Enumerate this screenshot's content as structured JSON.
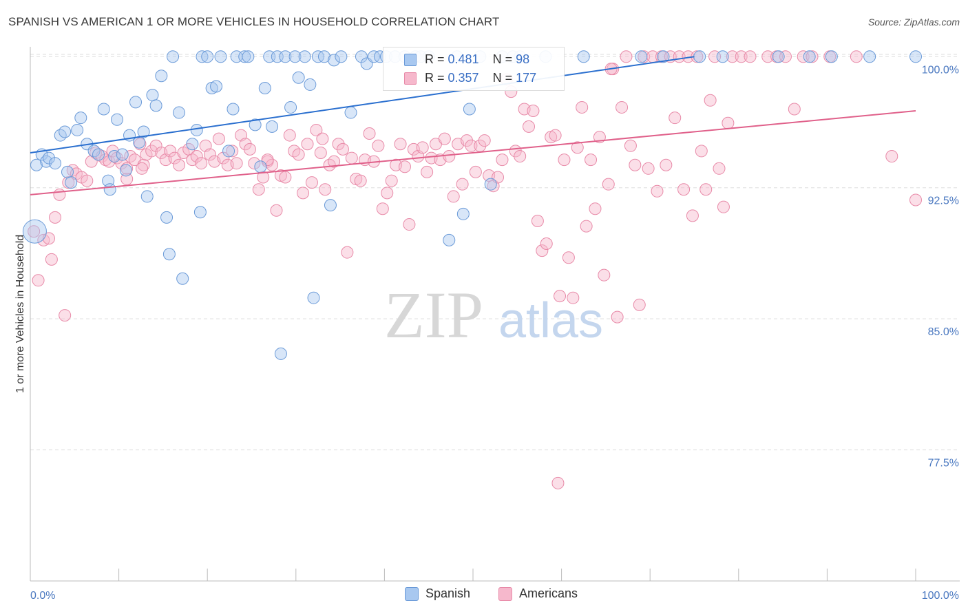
{
  "title": "SPANISH VS AMERICAN 1 OR MORE VEHICLES IN HOUSEHOLD CORRELATION CHART",
  "source": "Source: ZipAtlas.com",
  "watermark": {
    "zip": "ZIP",
    "atlas": "atlas"
  },
  "colors": {
    "spanish_fill": "#a8c8f0",
    "spanish_stroke": "#6a9ad8",
    "spanish_line": "#2a6fcf",
    "american_fill": "#f6b8cc",
    "american_stroke": "#e88aa8",
    "american_line": "#e0608a",
    "axis_text": "#4a78c0"
  },
  "legend": {
    "rows": [
      {
        "r_label": "R = ",
        "r_value": "0.481",
        "n_label": "N = ",
        "n_value": "98"
      },
      {
        "r_label": "R = ",
        "r_value": "0.357",
        "n_label": "N = ",
        "n_value": "177"
      }
    ]
  },
  "bottom_legend": [
    "Spanish",
    "Americans"
  ],
  "chart_data": {
    "type": "scatter",
    "title": "SPANISH VS AMERICAN 1 OR MORE VEHICLES IN HOUSEHOLD CORRELATION CHART",
    "xlabel": "",
    "ylabel": "1 or more Vehicles in Household",
    "xlim": [
      0,
      100
    ],
    "ylim": [
      70,
      100.8
    ],
    "x_tick_labels": [
      "0.0%",
      "100.0%"
    ],
    "y_ticks": [
      77.5,
      85.0,
      92.5,
      100.0
    ],
    "y_tick_labels": [
      "77.5%",
      "85.0%",
      "92.5%",
      "100.0%"
    ],
    "grid": true,
    "legend_position": "top-center",
    "series": [
      {
        "name": "Spanish",
        "R": 0.481,
        "N": 98,
        "trend": {
          "x": [
            0,
            75
          ],
          "y": [
            94.5,
            100.0
          ]
        },
        "points": [
          [
            0.5,
            90.0
          ],
          [
            0.7,
            93.8
          ],
          [
            1.3,
            94.4
          ],
          [
            1.8,
            94.0
          ],
          [
            2.1,
            94.2
          ],
          [
            2.8,
            93.9
          ],
          [
            3.4,
            95.5
          ],
          [
            3.9,
            95.7
          ],
          [
            4.2,
            93.4
          ],
          [
            4.6,
            92.8
          ],
          [
            5.3,
            95.8
          ],
          [
            5.7,
            96.5
          ],
          [
            6.4,
            95.0
          ],
          [
            7.2,
            94.6
          ],
          [
            7.7,
            94.4
          ],
          [
            8.3,
            97.0
          ],
          [
            8.8,
            92.9
          ],
          [
            9.0,
            92.4
          ],
          [
            9.5,
            94.3
          ],
          [
            9.8,
            96.4
          ],
          [
            10.4,
            94.4
          ],
          [
            10.8,
            93.5
          ],
          [
            11.2,
            95.5
          ],
          [
            11.9,
            97.4
          ],
          [
            12.3,
            95.1
          ],
          [
            12.8,
            95.7
          ],
          [
            13.2,
            92.0
          ],
          [
            13.8,
            97.8
          ],
          [
            14.2,
            97.2
          ],
          [
            14.8,
            98.9
          ],
          [
            15.4,
            90.8
          ],
          [
            15.7,
            88.7
          ],
          [
            16.1,
            100.0
          ],
          [
            16.8,
            96.8
          ],
          [
            17.2,
            87.3
          ],
          [
            18.3,
            95.0
          ],
          [
            18.8,
            95.8
          ],
          [
            19.2,
            91.1
          ],
          [
            19.4,
            100.0
          ],
          [
            20.0,
            100.0
          ],
          [
            20.5,
            98.2
          ],
          [
            21.0,
            98.3
          ],
          [
            21.5,
            100.0
          ],
          [
            22.4,
            94.6
          ],
          [
            22.9,
            97.0
          ],
          [
            23.3,
            100.0
          ],
          [
            24.2,
            100.0
          ],
          [
            24.6,
            100.0
          ],
          [
            25.4,
            96.1
          ],
          [
            26.0,
            93.7
          ],
          [
            26.5,
            98.2
          ],
          [
            27.0,
            100.0
          ],
          [
            27.3,
            96.0
          ],
          [
            27.9,
            100.0
          ],
          [
            28.3,
            83.0
          ],
          [
            28.8,
            100.0
          ],
          [
            29.4,
            97.1
          ],
          [
            29.9,
            100.0
          ],
          [
            30.3,
            98.8
          ],
          [
            31.0,
            100.0
          ],
          [
            31.6,
            98.4
          ],
          [
            32.0,
            86.2
          ],
          [
            32.5,
            100.0
          ],
          [
            33.2,
            100.0
          ],
          [
            33.9,
            91.5
          ],
          [
            34.3,
            99.8
          ],
          [
            35.1,
            100.0
          ],
          [
            36.2,
            96.8
          ],
          [
            37.4,
            100.0
          ],
          [
            38.0,
            99.6
          ],
          [
            38.8,
            100.0
          ],
          [
            39.5,
            100.0
          ],
          [
            40.2,
            100.0
          ],
          [
            41.2,
            100.0
          ],
          [
            42.3,
            100.0
          ],
          [
            43.5,
            100.0
          ],
          [
            44.1,
            100.0
          ],
          [
            45.0,
            100.0
          ],
          [
            47.3,
            89.5
          ],
          [
            48.2,
            100.0
          ],
          [
            48.9,
            91.0
          ],
          [
            49.6,
            97.0
          ],
          [
            50.8,
            100.0
          ],
          [
            52.0,
            92.7
          ],
          [
            53.3,
            100.0
          ],
          [
            54.5,
            100.0
          ],
          [
            55.3,
            100.0
          ],
          [
            58.2,
            100.0
          ],
          [
            62.5,
            100.0
          ],
          [
            69.0,
            100.0
          ],
          [
            71.5,
            100.0
          ],
          [
            75.6,
            100.0
          ],
          [
            78.2,
            100.0
          ],
          [
            84.5,
            100.0
          ],
          [
            88.0,
            100.0
          ],
          [
            90.5,
            100.0
          ],
          [
            94.8,
            100.0
          ],
          [
            100.0,
            100.0
          ]
        ]
      },
      {
        "name": "Americans",
        "R": 0.357,
        "N": 177,
        "trend": {
          "x": [
            0,
            100
          ],
          "y": [
            92.1,
            96.9
          ]
        },
        "points": [
          [
            0.4,
            90.0
          ],
          [
            0.9,
            87.2
          ],
          [
            1.5,
            89.5
          ],
          [
            2.1,
            89.6
          ],
          [
            2.4,
            88.4
          ],
          [
            2.8,
            90.8
          ],
          [
            3.3,
            92.1
          ],
          [
            3.9,
            85.2
          ],
          [
            4.3,
            92.8
          ],
          [
            4.8,
            93.5
          ],
          [
            5.2,
            93.3
          ],
          [
            5.8,
            93.1
          ],
          [
            6.4,
            92.9
          ],
          [
            6.9,
            94.0
          ],
          [
            7.4,
            94.5
          ],
          [
            8.1,
            94.3
          ],
          [
            8.5,
            94.1
          ],
          [
            8.9,
            94.0
          ],
          [
            9.3,
            94.6
          ],
          [
            9.8,
            94.2
          ],
          [
            10.3,
            93.9
          ],
          [
            10.9,
            93.6
          ],
          [
            11.3,
            94.3
          ],
          [
            11.8,
            94.1
          ],
          [
            12.4,
            95.0
          ],
          [
            12.8,
            93.8
          ],
          [
            13.1,
            94.4
          ],
          [
            13.7,
            94.6
          ],
          [
            14.2,
            94.9
          ],
          [
            14.8,
            94.5
          ],
          [
            15.3,
            94.1
          ],
          [
            15.8,
            94.6
          ],
          [
            16.3,
            94.2
          ],
          [
            16.8,
            93.8
          ],
          [
            17.3,
            94.5
          ],
          [
            17.9,
            94.7
          ],
          [
            18.3,
            94.1
          ],
          [
            18.8,
            94.3
          ],
          [
            19.3,
            93.9
          ],
          [
            19.8,
            94.9
          ],
          [
            20.3,
            94.4
          ],
          [
            20.8,
            94.0
          ],
          [
            21.3,
            95.3
          ],
          [
            21.8,
            94.2
          ],
          [
            22.3,
            93.8
          ],
          [
            22.8,
            94.6
          ],
          [
            23.3,
            93.9
          ],
          [
            23.8,
            95.5
          ],
          [
            24.3,
            95.0
          ],
          [
            24.8,
            94.7
          ],
          [
            25.3,
            93.9
          ],
          [
            25.8,
            92.4
          ],
          [
            26.3,
            93.1
          ],
          [
            26.8,
            94.0
          ],
          [
            27.3,
            93.8
          ],
          [
            27.8,
            91.2
          ],
          [
            28.3,
            93.2
          ],
          [
            28.8,
            93.1
          ],
          [
            29.3,
            95.5
          ],
          [
            29.8,
            94.6
          ],
          [
            30.3,
            94.4
          ],
          [
            30.8,
            92.2
          ],
          [
            31.3,
            95.0
          ],
          [
            31.8,
            92.8
          ],
          [
            32.3,
            95.8
          ],
          [
            32.8,
            94.5
          ],
          [
            33.3,
            92.4
          ],
          [
            33.8,
            93.8
          ],
          [
            34.3,
            94.0
          ],
          [
            34.8,
            95.0
          ],
          [
            35.3,
            94.7
          ],
          [
            35.8,
            88.8
          ],
          [
            36.3,
            94.2
          ],
          [
            36.8,
            93.0
          ],
          [
            37.3,
            92.9
          ],
          [
            37.8,
            94.1
          ],
          [
            38.3,
            95.6
          ],
          [
            38.8,
            94.0
          ],
          [
            39.3,
            94.9
          ],
          [
            39.8,
            91.3
          ],
          [
            40.3,
            92.2
          ],
          [
            40.8,
            92.9
          ],
          [
            41.3,
            93.8
          ],
          [
            41.8,
            95.0
          ],
          [
            42.3,
            93.7
          ],
          [
            42.8,
            90.4
          ],
          [
            43.3,
            94.7
          ],
          [
            43.8,
            94.3
          ],
          [
            44.3,
            94.8
          ],
          [
            44.8,
            93.4
          ],
          [
            45.3,
            94.2
          ],
          [
            45.8,
            95.0
          ],
          [
            46.3,
            94.1
          ],
          [
            46.8,
            95.3
          ],
          [
            47.3,
            94.3
          ],
          [
            47.8,
            92.0
          ],
          [
            48.3,
            95.0
          ],
          [
            48.8,
            92.7
          ],
          [
            49.3,
            95.2
          ],
          [
            49.8,
            94.9
          ],
          [
            50.3,
            93.4
          ],
          [
            50.8,
            94.9
          ],
          [
            51.3,
            95.2
          ],
          [
            51.8,
            93.2
          ],
          [
            52.3,
            92.6
          ],
          [
            52.8,
            93.1
          ],
          [
            53.3,
            94.1
          ],
          [
            53.8,
            98.7
          ],
          [
            54.3,
            98.0
          ],
          [
            54.8,
            94.6
          ],
          [
            55.3,
            94.3
          ],
          [
            55.8,
            97.0
          ],
          [
            56.3,
            96.0
          ],
          [
            56.8,
            96.9
          ],
          [
            57.3,
            90.6
          ],
          [
            57.8,
            88.9
          ],
          [
            58.3,
            89.3
          ],
          [
            58.8,
            95.4
          ],
          [
            59.3,
            95.5
          ],
          [
            59.8,
            86.3
          ],
          [
            60.3,
            94.1
          ],
          [
            60.8,
            88.5
          ],
          [
            61.3,
            86.2
          ],
          [
            61.8,
            94.8
          ],
          [
            62.3,
            97.1
          ],
          [
            62.8,
            90.3
          ],
          [
            63.3,
            94.1
          ],
          [
            63.8,
            91.3
          ],
          [
            64.3,
            95.4
          ],
          [
            64.8,
            87.5
          ],
          [
            65.3,
            92.7
          ],
          [
            65.8,
            99.3
          ],
          [
            66.3,
            85.1
          ],
          [
            66.8,
            97.1
          ],
          [
            67.3,
            100.0
          ],
          [
            67.8,
            94.9
          ],
          [
            68.3,
            93.8
          ],
          [
            68.8,
            85.8
          ],
          [
            69.3,
            100.0
          ],
          [
            69.8,
            93.6
          ],
          [
            70.3,
            100.0
          ],
          [
            70.8,
            92.3
          ],
          [
            71.3,
            100.0
          ],
          [
            71.8,
            93.8
          ],
          [
            72.3,
            100.0
          ],
          [
            72.8,
            96.5
          ],
          [
            73.3,
            100.0
          ],
          [
            73.8,
            92.4
          ],
          [
            74.3,
            100.0
          ],
          [
            74.8,
            90.9
          ],
          [
            75.3,
            100.0
          ],
          [
            75.8,
            94.6
          ],
          [
            76.3,
            92.4
          ],
          [
            76.8,
            97.5
          ],
          [
            77.3,
            100.0
          ],
          [
            77.8,
            93.6
          ],
          [
            78.3,
            91.4
          ],
          [
            78.8,
            96.2
          ],
          [
            79.3,
            100.0
          ],
          [
            80.3,
            100.0
          ],
          [
            81.3,
            100.0
          ],
          [
            83.3,
            100.0
          ],
          [
            84.3,
            100.0
          ],
          [
            85.3,
            100.0
          ],
          [
            86.3,
            97.0
          ],
          [
            87.3,
            100.0
          ],
          [
            88.3,
            100.0
          ],
          [
            90.3,
            100.0
          ],
          [
            93.3,
            100.0
          ],
          [
            97.3,
            94.3
          ],
          [
            100.0,
            91.8
          ],
          [
            59.6,
            75.6
          ],
          [
            10.9,
            93.0
          ],
          [
            12.6,
            93.6
          ],
          [
            26.8,
            94.1
          ],
          [
            33.0,
            95.3
          ],
          [
            65.6,
            99.3
          ]
        ]
      }
    ]
  }
}
